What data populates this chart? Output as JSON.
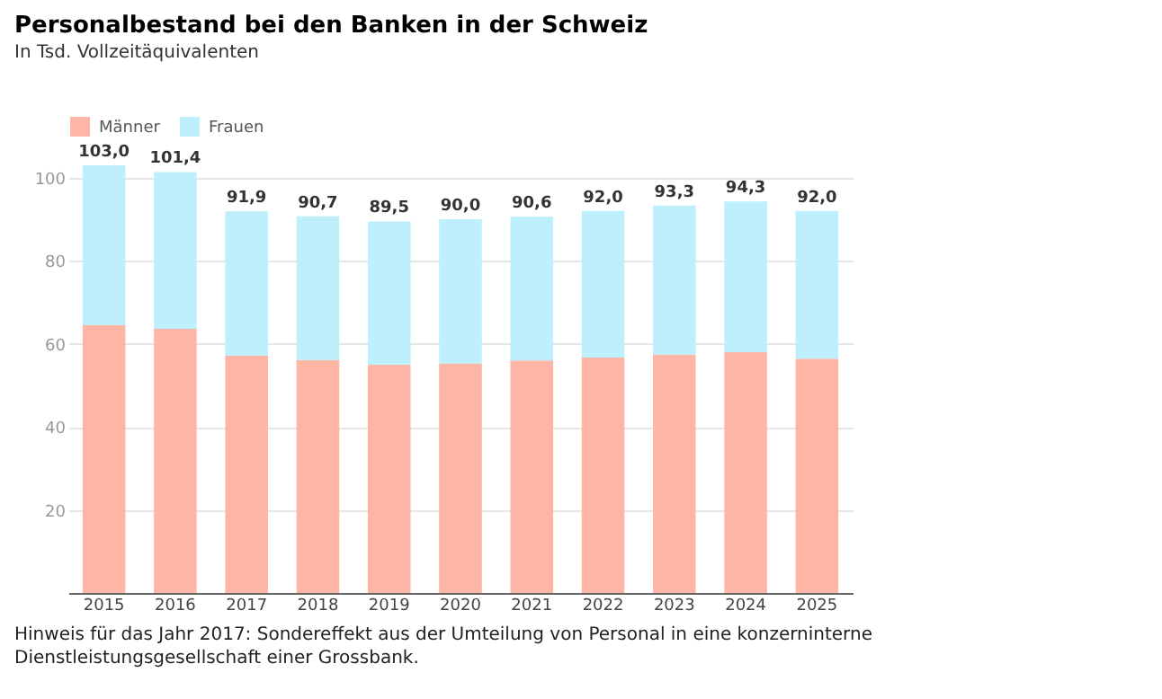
{
  "chart_data": {
    "type": "bar",
    "title": "Personalbestand bei den Banken in der Schweiz",
    "subtitle": "In Tsd. Vollzeitäquivalenten",
    "categories": [
      "2015",
      "2016",
      "2017",
      "2018",
      "2019",
      "2020",
      "2021",
      "2022",
      "2023",
      "2024",
      "2025"
    ],
    "series": [
      {
        "name": "Männer",
        "color": "#fdb5a5",
        "values": [
          64.5,
          63.6,
          57.2,
          56.1,
          55.0,
          55.3,
          56.0,
          56.7,
          57.4,
          58.0,
          56.4
        ]
      },
      {
        "name": "Frauen",
        "color": "#bdeffc",
        "values": [
          38.5,
          37.8,
          34.7,
          34.6,
          34.5,
          34.7,
          34.6,
          35.3,
          35.9,
          36.3,
          35.6
        ]
      }
    ],
    "stacked": true,
    "totals": [
      "103,0",
      "101,4",
      "91,9",
      "90,7",
      "89,5",
      "90,0",
      "90,6",
      "92,0",
      "93,3",
      "94,3",
      "92,0"
    ],
    "ylim": [
      0,
      103
    ],
    "yticks": [
      20,
      40,
      60,
      80,
      100
    ],
    "grid": "y",
    "legend": "top left",
    "annotations": [
      "Hinweis für das Jahr 2017: Sondereffekt aus der Umteilung von Personal in eine konzerninterne Dienstleistungsgesellschaft einer Grossbank."
    ]
  }
}
